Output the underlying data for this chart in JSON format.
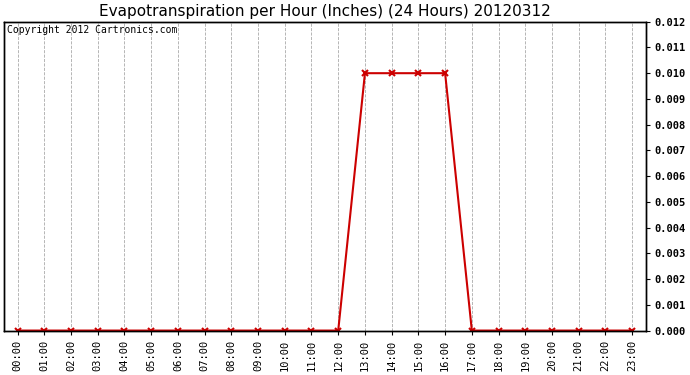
{
  "title": "Evapotranspiration per Hour (Inches) (24 Hours) 20120312",
  "copyright": "Copyright 2012 Cartronics.com",
  "hours": [
    "00:00",
    "01:00",
    "02:00",
    "03:00",
    "04:00",
    "05:00",
    "06:00",
    "07:00",
    "08:00",
    "09:00",
    "10:00",
    "11:00",
    "12:00",
    "13:00",
    "14:00",
    "15:00",
    "16:00",
    "17:00",
    "18:00",
    "19:00",
    "20:00",
    "21:00",
    "22:00",
    "23:00"
  ],
  "values": [
    0.0,
    0.0,
    0.0,
    0.0,
    0.0,
    0.0,
    0.0,
    0.0,
    0.0,
    0.0,
    0.0,
    0.0,
    0.0,
    0.01,
    0.01,
    0.01,
    0.01,
    0.0,
    0.0,
    0.0,
    0.0,
    0.0,
    0.0,
    0.0
  ],
  "line_color": "#cc0000",
  "marker": "x",
  "marker_size": 4,
  "marker_linewidth": 1.5,
  "ylim": [
    0.0,
    0.012
  ],
  "yticks": [
    0.0,
    0.001,
    0.002,
    0.003,
    0.004,
    0.005,
    0.006,
    0.007,
    0.008,
    0.009,
    0.01,
    0.011,
    0.012
  ],
  "bg_color": "#ffffff",
  "plot_bg_color": "#ffffff",
  "grid_color": "#aaaaaa",
  "title_fontsize": 11,
  "copyright_fontsize": 7,
  "tick_fontsize": 7.5
}
